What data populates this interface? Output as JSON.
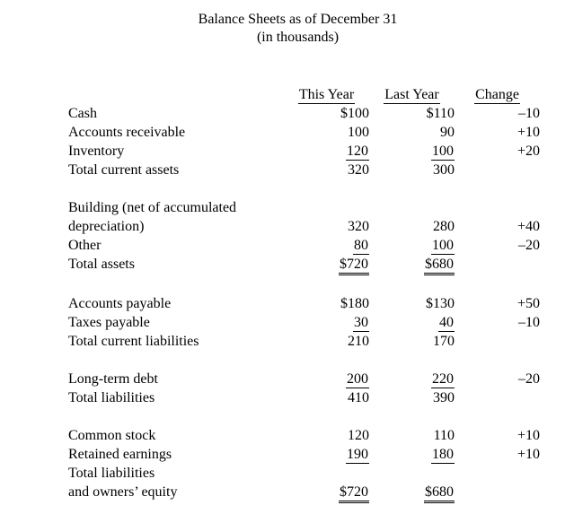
{
  "title": {
    "line1": "Balance Sheets as of December 31",
    "line2": "(in thousands)"
  },
  "columns": {
    "this_year": "This Year",
    "last_year": "Last Year",
    "change": "Change"
  },
  "colors": {
    "text": "#000000",
    "background": "#ffffff"
  },
  "rows": [
    {
      "label": "Cash",
      "indent": 0,
      "ty": "$100",
      "ly": "$110",
      "ch": "–10",
      "u": ""
    },
    {
      "label": "Accounts receivable",
      "indent": 0,
      "ty": "100",
      "ly": "90",
      "ch": "+10",
      "u": ""
    },
    {
      "label": "Inventory",
      "indent": 0,
      "ty": "120",
      "ly": "100",
      "ch": "+20",
      "u": "single"
    },
    {
      "label": "Total current assets",
      "indent": 1,
      "ty": "320",
      "ly": "300",
      "ch": "",
      "u": ""
    },
    {
      "spacer": true
    },
    {
      "label": "Building (net of accumulated",
      "indent": 0,
      "ty": "",
      "ly": "",
      "ch": "",
      "u": ""
    },
    {
      "label": "depreciation)",
      "indent": 1,
      "ty": "320",
      "ly": "280",
      "ch": "+40",
      "u": ""
    },
    {
      "label": "Other",
      "indent": 0,
      "ty": "80",
      "ly": "100",
      "ch": "–20",
      "u": "single"
    },
    {
      "label": "Total assets",
      "indent": 1,
      "ty": "$720",
      "ly": "$680",
      "ch": "",
      "u": "double"
    },
    {
      "spacer": true
    },
    {
      "label": "Accounts payable",
      "indent": 0,
      "ty": "$180",
      "ly": "$130",
      "ch": "+50",
      "u": ""
    },
    {
      "label": "Taxes payable",
      "indent": 0,
      "ty": "30",
      "ly": "40",
      "ch": "–10",
      "u": "single"
    },
    {
      "label": "Total current liabilities",
      "indent": 1,
      "ty": "210",
      "ly": "170",
      "ch": "",
      "u": ""
    },
    {
      "spacer": true
    },
    {
      "label": "Long-term debt",
      "indent": 0,
      "ty": "200",
      "ly": "220",
      "ch": "–20",
      "u": "single"
    },
    {
      "label": "Total liabilities",
      "indent": 1,
      "ty": "410",
      "ly": "390",
      "ch": "",
      "u": ""
    },
    {
      "spacer": true
    },
    {
      "label": "Common stock",
      "indent": 0,
      "ty": "120",
      "ly": "110",
      "ch": "+10",
      "u": ""
    },
    {
      "label": "Retained earnings",
      "indent": 0,
      "ty": "190",
      "ly": "180",
      "ch": "+10",
      "u": "single"
    },
    {
      "label": "Total liabilities",
      "indent": 1,
      "ty": "",
      "ly": "",
      "ch": "",
      "u": ""
    },
    {
      "label": "and owners’ equity",
      "indent": 1,
      "ty": "$720",
      "ly": "$680",
      "ch": "",
      "u": "double"
    }
  ]
}
